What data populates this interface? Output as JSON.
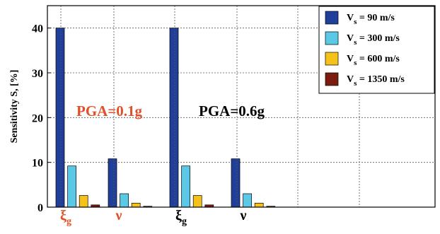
{
  "chart_data": {
    "type": "bar",
    "ylabel": "Sensitivity S, [%]",
    "ylim": [
      0,
      45
    ],
    "yticks": [
      0,
      10,
      20,
      30,
      40
    ],
    "grid": true,
    "legend_position": "top-right",
    "series": [
      {
        "name_main": "V",
        "name_sub": "s",
        "name_rest": " = 90 m/s",
        "color": "#1f3f9b"
      },
      {
        "name_main": "V",
        "name_sub": "s",
        "name_rest": " = 300 m/s",
        "color": "#5bc8e6"
      },
      {
        "name_main": "V",
        "name_sub": "s",
        "name_rest": " = 600 m/s",
        "color": "#f5c21b"
      },
      {
        "name_main": "V",
        "name_sub": "s",
        "name_rest": " = 1350 m/s",
        "color": "#7b1c0e"
      }
    ],
    "groups": [
      {
        "label_main": "ξ",
        "label_sub": "g",
        "label_color": "#e2502a",
        "values": [
          40,
          9.2,
          2.6,
          0.5
        ]
      },
      {
        "label_main": "ν",
        "label_sub": "",
        "label_color": "#e2502a",
        "values": [
          10.8,
          3.0,
          0.9,
          0.2
        ]
      },
      {
        "label_main": "ξ",
        "label_sub": "g",
        "label_color": "#000000",
        "values": [
          40,
          9.2,
          2.6,
          0.5
        ]
      },
      {
        "label_main": "ν",
        "label_sub": "",
        "label_color": "#000000",
        "values": [
          10.8,
          3.0,
          0.9,
          0.2
        ]
      }
    ],
    "annotations": [
      {
        "text": "PGA=0.1g",
        "color": "#e2502a"
      },
      {
        "text": "PGA=0.6g",
        "color": "#000000"
      }
    ]
  }
}
